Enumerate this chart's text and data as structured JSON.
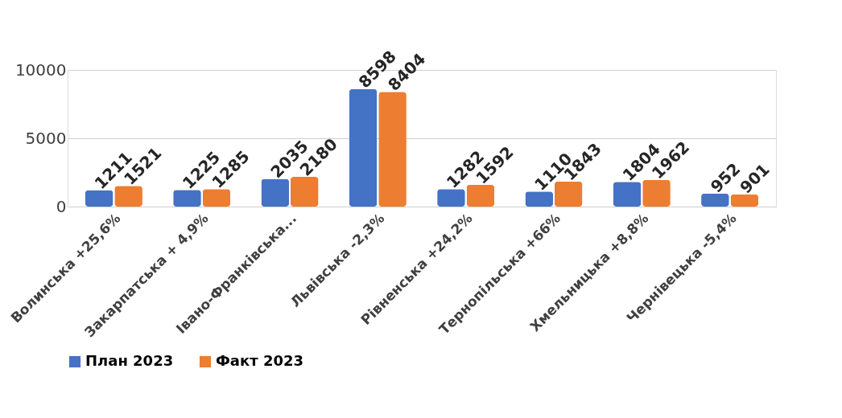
{
  "chart_data": {
    "type": "bar",
    "categories": [
      "Волинська +25,6%",
      "Закарпатська + 4,9%",
      "Івано-Франківська...",
      "Львівська -2,3%",
      "Рівненська +24,2%",
      "Тернопільська +66%",
      "Хмельницька +8,8%",
      "Чернівецька -5,4%"
    ],
    "series": [
      {
        "name": "План 2023",
        "color": "#4472c4",
        "values": [
          1211,
          1225,
          2035,
          8598,
          1282,
          1110,
          1804,
          952
        ]
      },
      {
        "name": "Факт 2023",
        "color": "#ed7d31",
        "values": [
          1521,
          1285,
          2180,
          8404,
          1592,
          1843,
          1962,
          901
        ]
      }
    ],
    "ylim": [
      0,
      10000
    ],
    "yticks": [
      0,
      5000,
      10000
    ],
    "grid": "y",
    "legend": "bottom",
    "data_labels": true
  }
}
